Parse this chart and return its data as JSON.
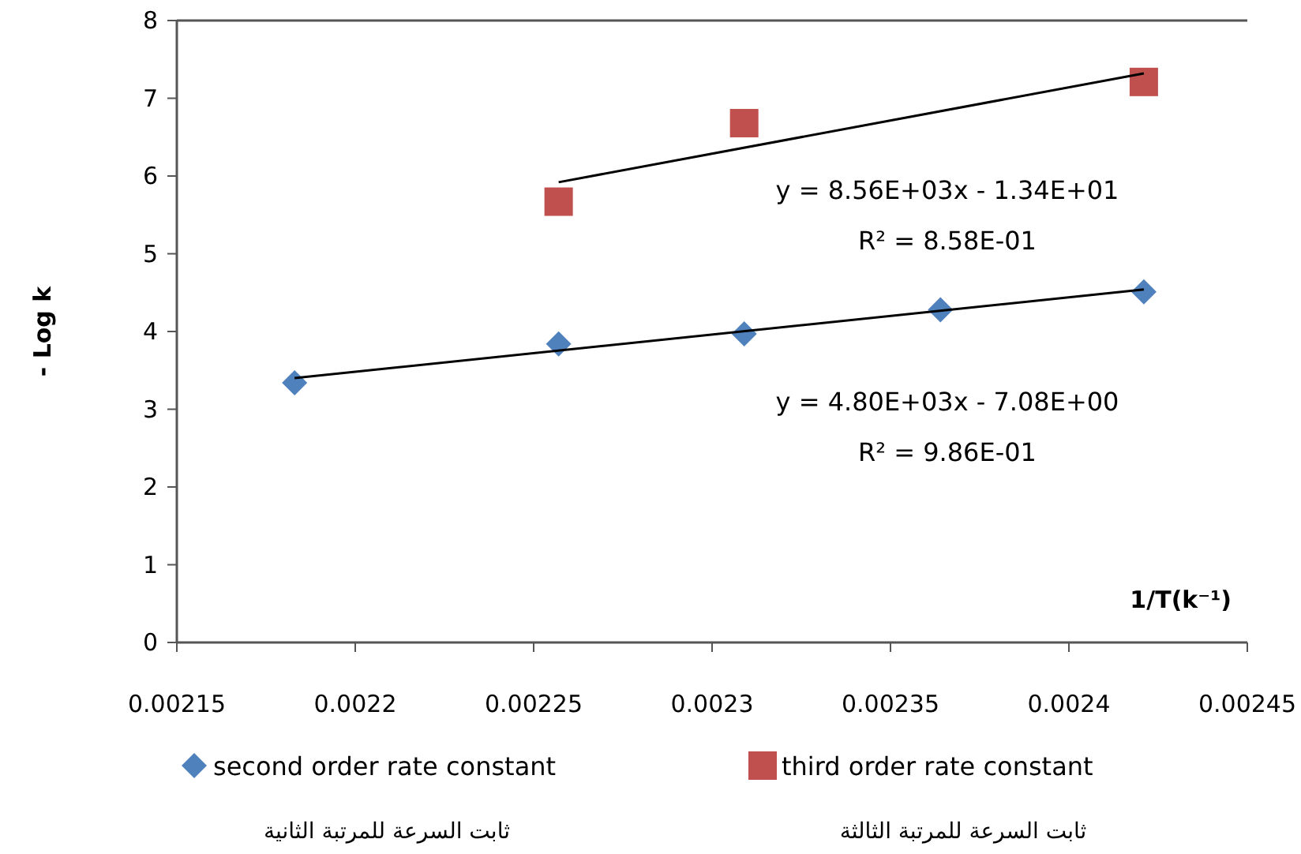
{
  "chart_data": {
    "type": "scatter",
    "ylabel": "- Log k",
    "xlabel": "1/T(k⁻¹)",
    "xlim": [
      0.00215,
      0.00245
    ],
    "xticks": [
      0.00215,
      0.0022,
      0.00225,
      0.0023,
      0.00235,
      0.0024,
      0.00245
    ],
    "ylim": [
      0,
      8
    ],
    "yticks": [
      0,
      1,
      2,
      3,
      4,
      5,
      6,
      7,
      8
    ],
    "grid": false,
    "legend": "bottom",
    "series": [
      {
        "name": "second order rate constant",
        "color": "#4f81bd",
        "marker": "diamond",
        "x": [
          0.002183,
          0.002257,
          0.002309,
          0.002364,
          0.002421
        ],
        "values": [
          3.34,
          3.84,
          3.97,
          4.28,
          4.51
        ]
      },
      {
        "name": "third order rate constant",
        "color": "#c0504d",
        "marker": "square",
        "x": [
          0.002257,
          0.002309,
          0.002421
        ],
        "values": [
          5.67,
          6.68,
          7.21
        ]
      },
      {
        "type": "line",
        "color": "#000000",
        "x": [
          0.002183,
          0.002421
        ],
        "values": [
          3.4,
          4.54
        ]
      },
      {
        "type": "line",
        "color": "#000000",
        "x": [
          0.002257,
          0.002421
        ],
        "values": [
          5.92,
          7.32
        ]
      }
    ],
    "annotations": [
      "y = 8.56E+03x - 1.34E+01",
      "R² = 8.58E-01",
      "y = 4.80E+03x - 7.08E+00",
      "R² = 9.86E-01",
      "ثابت السرعة للمرتبة الثانية",
      "ثابت السرعة للمرتبة الثالثة"
    ]
  }
}
